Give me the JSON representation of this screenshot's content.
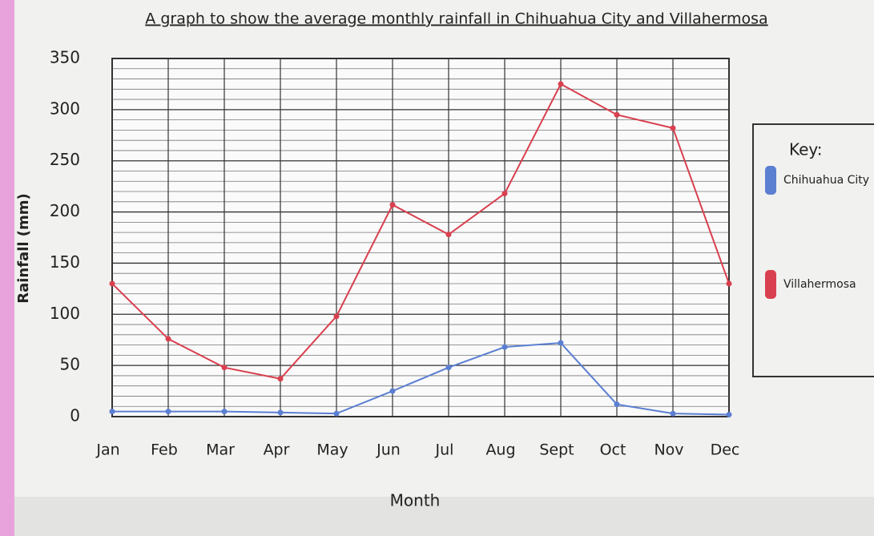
{
  "chart_data": {
    "type": "line",
    "title": "A graph to show the average monthly rainfall in Chihuahua City and Villahermosa",
    "x_label": "Month",
    "y_label": "Rainfall (mm)",
    "categories": [
      "Jan",
      "Feb",
      "Mar",
      "Apr",
      "May",
      "Jun",
      "Jul",
      "Aug",
      "Sept",
      "Oct",
      "Nov",
      "Dec"
    ],
    "series": [
      {
        "name": "Chihuahua City",
        "color": "#5b7fd1",
        "values": [
          5,
          5,
          5,
          4,
          3,
          25,
          48,
          68,
          72,
          12,
          3,
          2
        ]
      },
      {
        "name": "Villahermosa",
        "color": "#d9404f",
        "values": [
          130,
          76,
          48,
          37,
          98,
          207,
          178,
          218,
          325,
          295,
          282,
          130
        ]
      }
    ],
    "ylim": [
      0,
      350
    ],
    "yticks": [
      0,
      50,
      100,
      150,
      200,
      250,
      300,
      350
    ],
    "grid": true,
    "legend_title": "Key:",
    "legend_position": "right"
  }
}
